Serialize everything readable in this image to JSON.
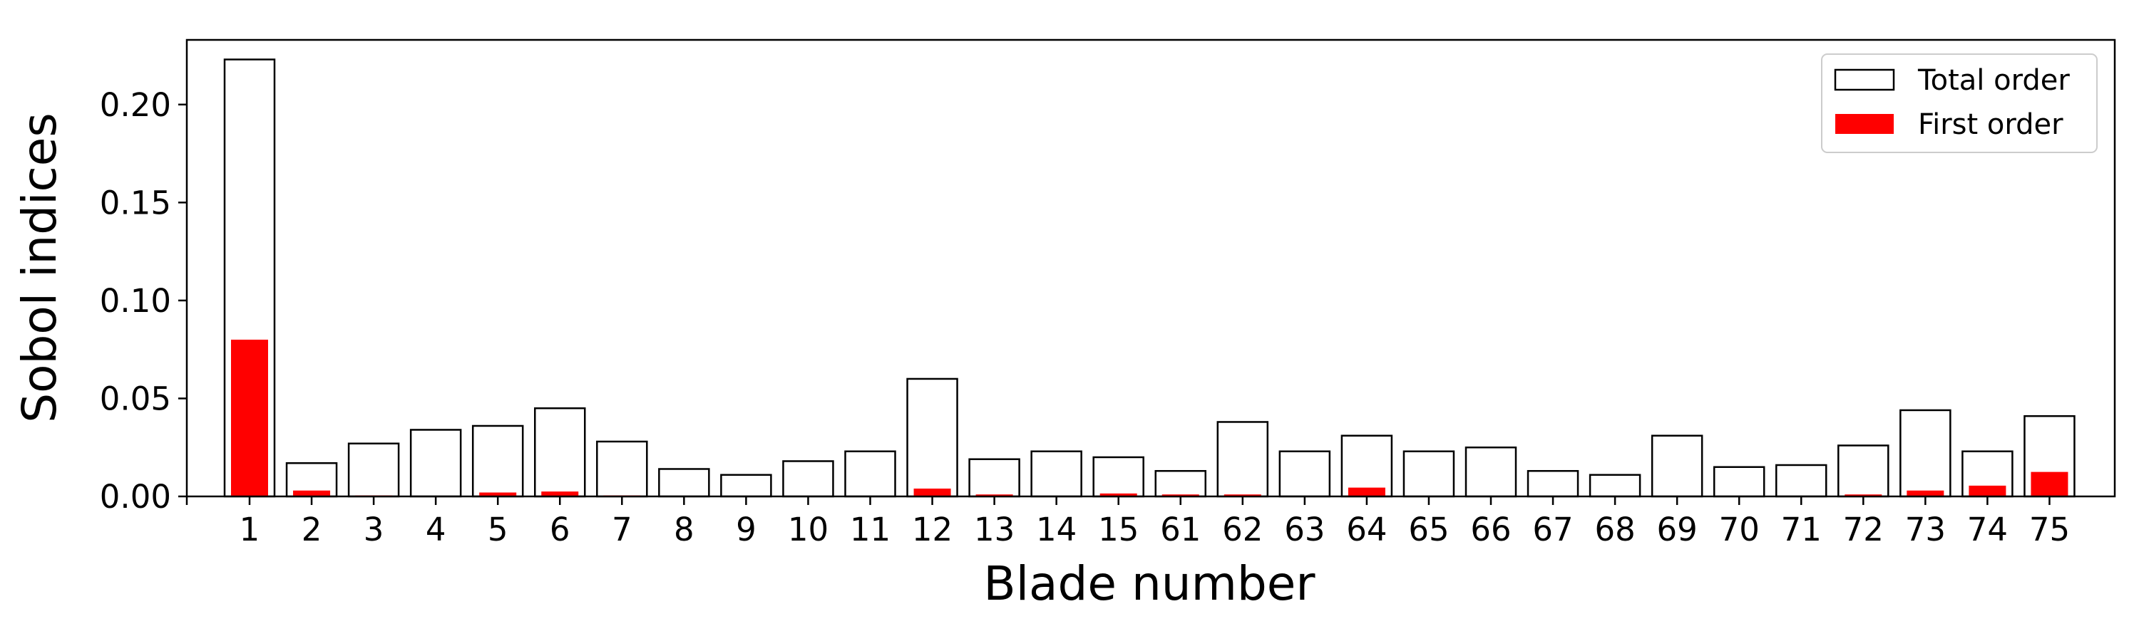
{
  "colors": {
    "total_fill": "#ffffff",
    "total_edge": "#000000",
    "first_fill": "#ff0000",
    "background": "#ffffff"
  },
  "chart_data": {
    "type": "bar",
    "title": "",
    "xlabel": "Blade number",
    "ylabel": "Sobol indices",
    "ylim": [
      0,
      0.233
    ],
    "yticks": [
      "0.00",
      "0.05",
      "0.10",
      "0.15",
      "0.20"
    ],
    "grid": false,
    "legend_position": "top-right",
    "categories": [
      "1",
      "2",
      "3",
      "4",
      "5",
      "6",
      "7",
      "8",
      "9",
      "10",
      "11",
      "12",
      "13",
      "14",
      "15",
      "61",
      "62",
      "63",
      "64",
      "65",
      "66",
      "67",
      "68",
      "69",
      "70",
      "71",
      "72",
      "73",
      "74",
      "75"
    ],
    "series": [
      {
        "name": "Total order",
        "style": "outline",
        "values": [
          0.223,
          0.017,
          0.027,
          0.034,
          0.036,
          0.045,
          0.028,
          0.014,
          0.011,
          0.018,
          0.023,
          0.06,
          0.019,
          0.023,
          0.02,
          0.013,
          0.038,
          0.023,
          0.031,
          0.023,
          0.025,
          0.013,
          0.011,
          0.031,
          0.015,
          0.016,
          0.026,
          0.044,
          0.023,
          0.041
        ]
      },
      {
        "name": "First order",
        "style": "filled",
        "values": [
          0.08,
          0.003,
          0.0005,
          0.0003,
          0.002,
          0.0025,
          0.0005,
          0.0003,
          0.0002,
          0.0003,
          0.0003,
          0.004,
          0.001,
          0.0003,
          0.0015,
          0.001,
          0.001,
          0.0003,
          0.0045,
          0.0003,
          0.0003,
          0.0002,
          0.0002,
          0.0003,
          0.0002,
          0.0002,
          0.001,
          0.003,
          0.0055,
          0.0125
        ]
      }
    ]
  }
}
